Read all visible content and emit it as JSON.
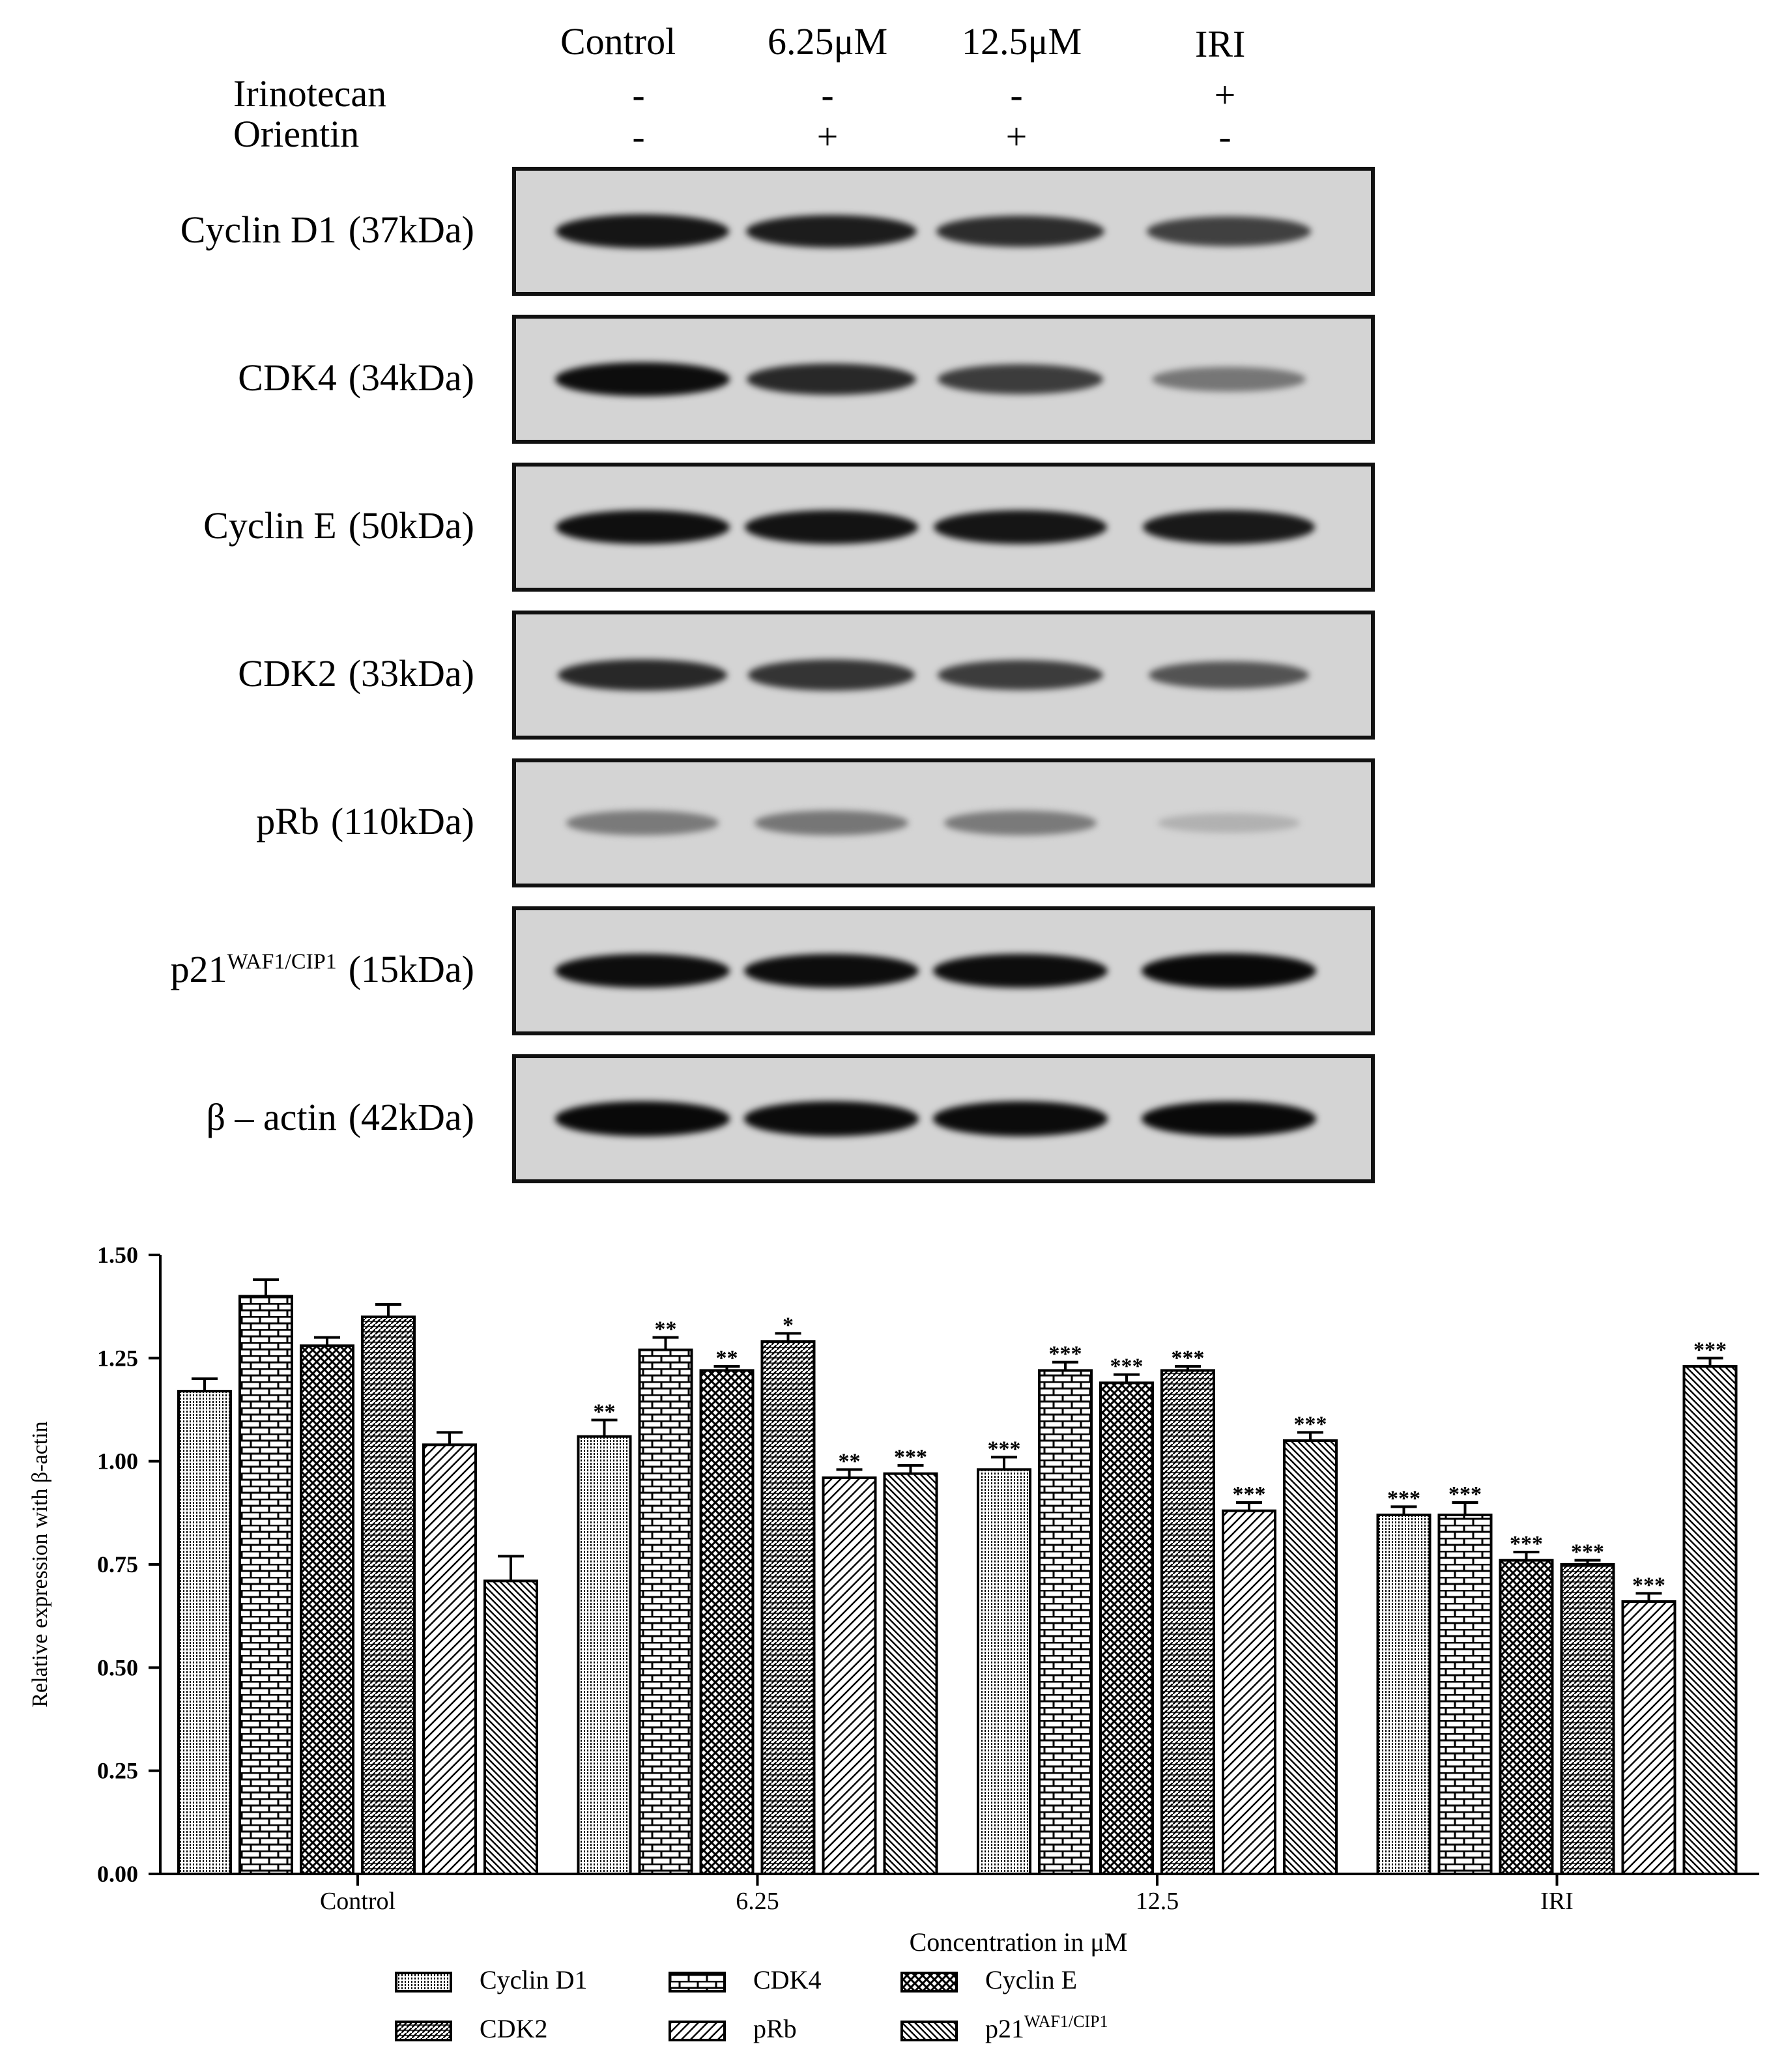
{
  "blot": {
    "lane_headers": [
      "Control",
      "6.25μM",
      "12.5μM",
      "IRI"
    ],
    "treatment_rows": [
      {
        "label": "Irinotecan",
        "signs": [
          "-",
          "-",
          "-",
          "+"
        ]
      },
      {
        "label": "Orientin",
        "signs": [
          "-",
          "+",
          "+",
          "-"
        ]
      }
    ],
    "proteins": [
      {
        "name": "Cyclin D1",
        "sup": "",
        "size": "(37kDa)",
        "intensity": [
          0.92,
          0.88,
          0.8,
          0.7
        ]
      },
      {
        "name": "CDK4",
        "sup": "",
        "size": "(34kDa)",
        "intensity": [
          0.96,
          0.82,
          0.72,
          0.42
        ]
      },
      {
        "name": "Cyclin E",
        "sup": "",
        "size": "(50kDa)",
        "intensity": [
          0.95,
          0.93,
          0.92,
          0.9
        ]
      },
      {
        "name": "CDK2",
        "sup": "",
        "size": "(33kDa)",
        "intensity": [
          0.82,
          0.76,
          0.72,
          0.6
        ]
      },
      {
        "name": "pRb",
        "sup": "",
        "size": "(110kDa)",
        "intensity": [
          0.4,
          0.42,
          0.4,
          0.12
        ]
      },
      {
        "name": "p21",
        "sup": "WAF1/CIP1",
        "size": "(15kDa)",
        "intensity": [
          0.96,
          0.96,
          0.96,
          0.98
        ]
      },
      {
        "name": "β – actin",
        "sup": "",
        "size": "(42kDa)",
        "intensity": [
          0.98,
          0.97,
          0.97,
          0.98
        ]
      }
    ]
  },
  "chart_data": {
    "type": "bar",
    "categories": [
      "Control",
      "6.25",
      "12.5",
      "IRI"
    ],
    "xlabel": "Concentration in μM",
    "ylabel": "Relative expression with β-actin",
    "ylim": [
      0,
      1.5
    ],
    "yticks": [
      "0.00",
      "0.25",
      "0.50",
      "0.75",
      "1.00",
      "1.25",
      "1.50"
    ],
    "series": [
      {
        "name": "Cyclin D1",
        "sup": "",
        "pattern": "dots",
        "values": [
          1.17,
          1.06,
          0.98,
          0.87
        ],
        "errors": [
          0.03,
          0.04,
          0.03,
          0.02
        ],
        "sig": [
          "",
          "**",
          "***",
          "***"
        ]
      },
      {
        "name": "CDK4",
        "sup": "",
        "pattern": "brick",
        "values": [
          1.4,
          1.27,
          1.22,
          0.87
        ],
        "errors": [
          0.04,
          0.03,
          0.02,
          0.03
        ],
        "sig": [
          "",
          "**",
          "***",
          "***"
        ]
      },
      {
        "name": "Cyclin E",
        "sup": "",
        "pattern": "cross",
        "values": [
          1.28,
          1.22,
          1.19,
          0.76
        ],
        "errors": [
          0.02,
          0.01,
          0.02,
          0.02
        ],
        "sig": [
          "",
          "**",
          "***",
          "***"
        ]
      },
      {
        "name": "CDK2",
        "sup": "",
        "pattern": "dense",
        "values": [
          1.35,
          1.29,
          1.22,
          0.75
        ],
        "errors": [
          0.03,
          0.02,
          0.01,
          0.01
        ],
        "sig": [
          "",
          "*",
          "***",
          "***"
        ]
      },
      {
        "name": "pRb",
        "sup": "",
        "pattern": "diag",
        "values": [
          1.04,
          0.96,
          0.88,
          0.66
        ],
        "errors": [
          0.03,
          0.02,
          0.02,
          0.02
        ],
        "sig": [
          "",
          "**",
          "***",
          "***"
        ]
      },
      {
        "name": "p21",
        "sup": "WAF1/CIP1",
        "pattern": "diagdense",
        "values": [
          0.71,
          0.97,
          1.05,
          1.23
        ],
        "errors": [
          0.06,
          0.02,
          0.02,
          0.02
        ],
        "sig": [
          "",
          "***",
          "***",
          "***"
        ]
      }
    ],
    "legend_position": "bottom",
    "grid": false
  }
}
